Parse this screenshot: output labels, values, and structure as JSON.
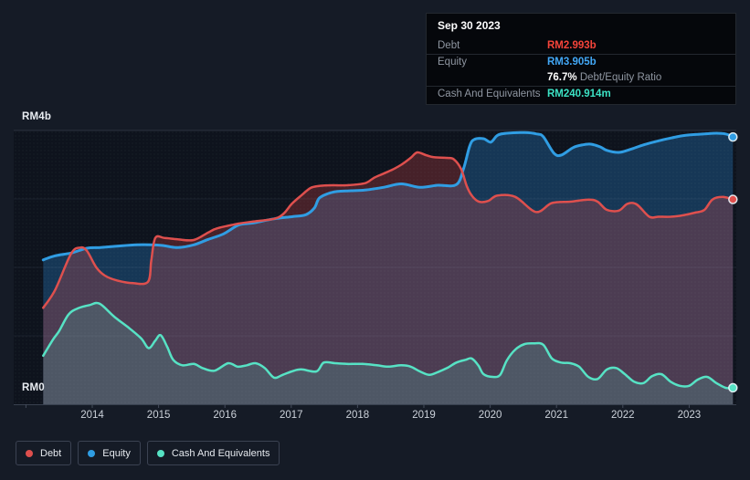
{
  "tooltip": {
    "date": "Sep 30 2023",
    "debt": {
      "label": "Debt",
      "value": "RM2.993b",
      "color": "#f5443a"
    },
    "equity": {
      "label": "Equity",
      "value": "RM3.905b",
      "color": "#42a7f5"
    },
    "ratio": {
      "value": "76.7%",
      "label": "Debt/Equity Ratio"
    },
    "cash": {
      "label": "Cash And Equivalents",
      "value": "RM240.914m",
      "color": "#3ce2c4"
    }
  },
  "chart_data": {
    "type": "area",
    "unit": "RM billions",
    "ylabel_top": "RM4b",
    "ylabel_bottom": "RM0",
    "ylim": [
      0,
      4
    ],
    "grid_values": [
      4,
      3,
      2,
      1
    ],
    "x_ticks": [
      "2014",
      "2015",
      "2016",
      "2017",
      "2018",
      "2019",
      "2020",
      "2021",
      "2022",
      "2023"
    ],
    "legend_position": "bottom-left",
    "series": [
      {
        "name": "Debt",
        "color": "#de4f4d",
        "fill": "rgba(222,74,74,0.27)",
        "points": [
          [
            2013.26,
            1.41
          ],
          [
            2013.44,
            1.67
          ],
          [
            2013.68,
            2.2
          ],
          [
            2013.82,
            2.29
          ],
          [
            2013.92,
            2.24
          ],
          [
            2014.06,
            2.0
          ],
          [
            2014.19,
            1.88
          ],
          [
            2014.37,
            1.81
          ],
          [
            2014.61,
            1.77
          ],
          [
            2014.84,
            1.79
          ],
          [
            2014.89,
            2.1
          ],
          [
            2014.95,
            2.43
          ],
          [
            2015.09,
            2.43
          ],
          [
            2015.29,
            2.41
          ],
          [
            2015.53,
            2.4
          ],
          [
            2015.75,
            2.51
          ],
          [
            2015.88,
            2.57
          ],
          [
            2016.21,
            2.64
          ],
          [
            2016.43,
            2.67
          ],
          [
            2016.74,
            2.71
          ],
          [
            2016.88,
            2.78
          ],
          [
            2017.01,
            2.93
          ],
          [
            2017.15,
            3.05
          ],
          [
            2017.29,
            3.16
          ],
          [
            2017.42,
            3.19
          ],
          [
            2017.63,
            3.2
          ],
          [
            2017.84,
            3.2
          ],
          [
            2018.11,
            3.23
          ],
          [
            2018.25,
            3.31
          ],
          [
            2018.39,
            3.37
          ],
          [
            2018.53,
            3.43
          ],
          [
            2018.66,
            3.5
          ],
          [
            2018.8,
            3.6
          ],
          [
            2018.9,
            3.68
          ],
          [
            2019.03,
            3.64
          ],
          [
            2019.15,
            3.61
          ],
          [
            2019.35,
            3.6
          ],
          [
            2019.45,
            3.58
          ],
          [
            2019.56,
            3.44
          ],
          [
            2019.65,
            3.18
          ],
          [
            2019.73,
            3.04
          ],
          [
            2019.83,
            2.96
          ],
          [
            2019.97,
            2.97
          ],
          [
            2020.11,
            3.05
          ],
          [
            2020.38,
            3.03
          ],
          [
            2020.69,
            2.81
          ],
          [
            2020.93,
            2.94
          ],
          [
            2021.21,
            2.96
          ],
          [
            2021.48,
            2.99
          ],
          [
            2021.62,
            2.96
          ],
          [
            2021.76,
            2.84
          ],
          [
            2021.94,
            2.83
          ],
          [
            2022.07,
            2.93
          ],
          [
            2022.21,
            2.92
          ],
          [
            2022.4,
            2.74
          ],
          [
            2022.54,
            2.74
          ],
          [
            2022.72,
            2.74
          ],
          [
            2022.9,
            2.76
          ],
          [
            2023.09,
            2.8
          ],
          [
            2023.23,
            2.84
          ],
          [
            2023.35,
            2.99
          ],
          [
            2023.5,
            3.03
          ],
          [
            2023.66,
            2.993
          ]
        ]
      },
      {
        "name": "Equity",
        "color": "#2f9de3",
        "fill": "rgba(43,138,219,0.30)",
        "points": [
          [
            2013.26,
            2.11
          ],
          [
            2013.44,
            2.17
          ],
          [
            2013.68,
            2.21
          ],
          [
            2013.92,
            2.28
          ],
          [
            2014.12,
            2.29
          ],
          [
            2014.37,
            2.31
          ],
          [
            2014.67,
            2.33
          ],
          [
            2014.88,
            2.33
          ],
          [
            2015.06,
            2.32
          ],
          [
            2015.29,
            2.29
          ],
          [
            2015.53,
            2.33
          ],
          [
            2015.75,
            2.41
          ],
          [
            2015.98,
            2.49
          ],
          [
            2016.21,
            2.62
          ],
          [
            2016.43,
            2.65
          ],
          [
            2016.74,
            2.71
          ],
          [
            2017.01,
            2.74
          ],
          [
            2017.22,
            2.77
          ],
          [
            2017.35,
            2.87
          ],
          [
            2017.42,
            3.01
          ],
          [
            2017.56,
            3.08
          ],
          [
            2017.7,
            3.11
          ],
          [
            2017.9,
            3.12
          ],
          [
            2018.11,
            3.13
          ],
          [
            2018.39,
            3.17
          ],
          [
            2018.66,
            3.22
          ],
          [
            2018.94,
            3.17
          ],
          [
            2019.21,
            3.2
          ],
          [
            2019.49,
            3.21
          ],
          [
            2019.6,
            3.45
          ],
          [
            2019.69,
            3.77
          ],
          [
            2019.76,
            3.87
          ],
          [
            2019.9,
            3.88
          ],
          [
            2020.01,
            3.83
          ],
          [
            2020.11,
            3.93
          ],
          [
            2020.25,
            3.96
          ],
          [
            2020.52,
            3.97
          ],
          [
            2020.7,
            3.95
          ],
          [
            2020.8,
            3.91
          ],
          [
            2020.96,
            3.67
          ],
          [
            2021.07,
            3.64
          ],
          [
            2021.25,
            3.75
          ],
          [
            2021.39,
            3.79
          ],
          [
            2021.52,
            3.8
          ],
          [
            2021.66,
            3.76
          ],
          [
            2021.76,
            3.71
          ],
          [
            2021.94,
            3.68
          ],
          [
            2022.13,
            3.73
          ],
          [
            2022.31,
            3.79
          ],
          [
            2022.54,
            3.85
          ],
          [
            2022.72,
            3.89
          ],
          [
            2022.95,
            3.93
          ],
          [
            2023.23,
            3.95
          ],
          [
            2023.41,
            3.96
          ],
          [
            2023.55,
            3.95
          ],
          [
            2023.66,
            3.905
          ]
        ]
      },
      {
        "name": "Cash And Equivalents",
        "color": "#56e2c4",
        "fill": "rgba(86,226,196,0.17)",
        "points": [
          [
            2013.26,
            0.71
          ],
          [
            2013.41,
            0.95
          ],
          [
            2013.5,
            1.07
          ],
          [
            2013.64,
            1.31
          ],
          [
            2013.78,
            1.4
          ],
          [
            2013.96,
            1.45
          ],
          [
            2014.11,
            1.47
          ],
          [
            2014.33,
            1.28
          ],
          [
            2014.56,
            1.11
          ],
          [
            2014.74,
            0.96
          ],
          [
            2014.85,
            0.82
          ],
          [
            2014.95,
            0.93
          ],
          [
            2015.03,
            1.01
          ],
          [
            2015.13,
            0.84
          ],
          [
            2015.22,
            0.65
          ],
          [
            2015.36,
            0.57
          ],
          [
            2015.53,
            0.59
          ],
          [
            2015.66,
            0.53
          ],
          [
            2015.84,
            0.49
          ],
          [
            2016.05,
            0.6
          ],
          [
            2016.19,
            0.55
          ],
          [
            2016.33,
            0.57
          ],
          [
            2016.46,
            0.6
          ],
          [
            2016.6,
            0.53
          ],
          [
            2016.74,
            0.39
          ],
          [
            2016.87,
            0.43
          ],
          [
            2017.01,
            0.48
          ],
          [
            2017.15,
            0.51
          ],
          [
            2017.38,
            0.48
          ],
          [
            2017.49,
            0.61
          ],
          [
            2017.66,
            0.6
          ],
          [
            2017.84,
            0.59
          ],
          [
            2018.07,
            0.59
          ],
          [
            2018.29,
            0.57
          ],
          [
            2018.46,
            0.55
          ],
          [
            2018.66,
            0.57
          ],
          [
            2018.8,
            0.55
          ],
          [
            2018.94,
            0.48
          ],
          [
            2019.08,
            0.43
          ],
          [
            2019.21,
            0.47
          ],
          [
            2019.35,
            0.53
          ],
          [
            2019.49,
            0.61
          ],
          [
            2019.63,
            0.65
          ],
          [
            2019.72,
            0.67
          ],
          [
            2019.82,
            0.57
          ],
          [
            2019.9,
            0.44
          ],
          [
            2020.04,
            0.4
          ],
          [
            2020.15,
            0.43
          ],
          [
            2020.25,
            0.64
          ],
          [
            2020.38,
            0.8
          ],
          [
            2020.52,
            0.88
          ],
          [
            2020.66,
            0.89
          ],
          [
            2020.8,
            0.87
          ],
          [
            2020.93,
            0.67
          ],
          [
            2021.07,
            0.61
          ],
          [
            2021.21,
            0.6
          ],
          [
            2021.34,
            0.55
          ],
          [
            2021.48,
            0.4
          ],
          [
            2021.62,
            0.37
          ],
          [
            2021.76,
            0.51
          ],
          [
            2021.9,
            0.53
          ],
          [
            2022.03,
            0.44
          ],
          [
            2022.17,
            0.33
          ],
          [
            2022.31,
            0.31
          ],
          [
            2022.44,
            0.41
          ],
          [
            2022.58,
            0.44
          ],
          [
            2022.72,
            0.33
          ],
          [
            2022.86,
            0.27
          ],
          [
            2023.0,
            0.27
          ],
          [
            2023.13,
            0.36
          ],
          [
            2023.27,
            0.4
          ],
          [
            2023.41,
            0.31
          ],
          [
            2023.55,
            0.24
          ],
          [
            2023.66,
            0.241
          ]
        ]
      }
    ]
  }
}
